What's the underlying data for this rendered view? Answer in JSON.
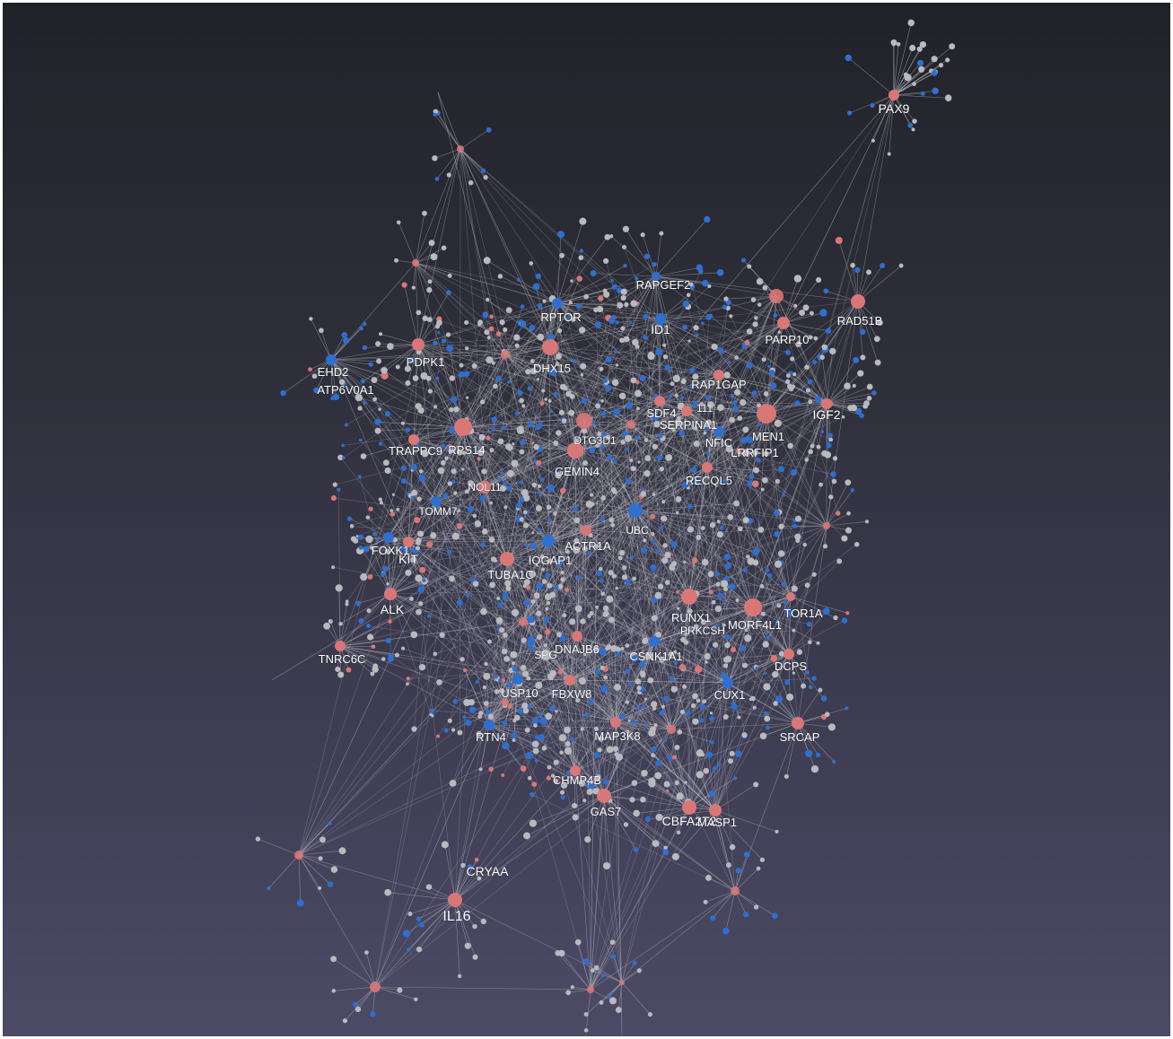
{
  "colors": {
    "hub": "#d97777",
    "blue": "#2f6fd0",
    "grey": "#b9b9be",
    "edge": "#c8c8d0"
  },
  "nodes": [
    {
      "id": "PAX9",
      "label": "PAX9"
    },
    {
      "id": "RAPGEF2",
      "label": "RAPGEF2"
    },
    {
      "id": "RPTOR",
      "label": "RPTOR"
    },
    {
      "id": "ID1",
      "label": "ID1"
    },
    {
      "id": "PARP10",
      "label": "PARP10"
    },
    {
      "id": "RAD51B",
      "label": "RAD51B"
    },
    {
      "id": "EHD2",
      "label": "EHD2"
    },
    {
      "id": "PDPK1",
      "label": "PDPK1"
    },
    {
      "id": "DHX15",
      "label": "DHX15"
    },
    {
      "id": "ATP6V0A1",
      "label": "ATP6V0A1"
    },
    {
      "id": "RAP1GAP",
      "label": "RAP1GAP"
    },
    {
      "id": "SDF4",
      "label": "SDF4"
    },
    {
      "id": "SERPINA1",
      "label": "SERPINA1"
    },
    {
      "id": "IGF2",
      "label": "IGF2"
    },
    {
      "id": "MEN1",
      "label": "MEN1"
    },
    {
      "id": "NFIC",
      "label": "NFIC"
    },
    {
      "id": "LRRFIP1",
      "label": "LRRFIP1"
    },
    {
      "id": "TRAPPC9",
      "label": "TRAPPC9"
    },
    {
      "id": "RPS14",
      "label": "RPS14"
    },
    {
      "id": "GEMIN4",
      "label": "GEMIN4"
    },
    {
      "id": "RECQL5",
      "label": "RECQL5"
    },
    {
      "id": "TOMM7",
      "label": "TOMM7"
    },
    {
      "id": "FOXK1",
      "label": "FOXK1"
    },
    {
      "id": "KIT",
      "label": "KIT"
    },
    {
      "id": "UBC",
      "label": "UBC"
    },
    {
      "id": "ACTR1A",
      "label": "ACTR1A"
    },
    {
      "id": "IQGAP1",
      "label": "IQGAP1"
    },
    {
      "id": "TUBA1C",
      "label": "TUBA1C"
    },
    {
      "id": "ALK",
      "label": "ALK"
    },
    {
      "id": "RUNX1",
      "label": "RUNX1"
    },
    {
      "id": "MORF4L1",
      "label": "MORF4L1"
    },
    {
      "id": "TOR1A",
      "label": "TOR1A"
    },
    {
      "id": "TNRC6C",
      "label": "TNRC6C"
    },
    {
      "id": "DNAJB6",
      "label": "DNAJB6"
    },
    {
      "id": "CSNK1A1",
      "label": "CSNK1A1"
    },
    {
      "id": "DCPS",
      "label": "DCPS"
    },
    {
      "id": "USP10",
      "label": "USP10"
    },
    {
      "id": "FBXW8",
      "label": "FBXW8"
    },
    {
      "id": "CUX1",
      "label": "CUX1"
    },
    {
      "id": "RTN4",
      "label": "RTN4"
    },
    {
      "id": "MAP3K8",
      "label": "MAP3K8"
    },
    {
      "id": "SRCAP",
      "label": "SRCAP"
    },
    {
      "id": "CHMP4B",
      "label": "CHMP4B"
    },
    {
      "id": "GAS7",
      "label": "GAS7"
    },
    {
      "id": "CBFA2T2",
      "label": "CBFA2T2"
    },
    {
      "id": "MASP1",
      "label": "MASP1"
    },
    {
      "id": "CRYAA",
      "label": "CRYAA"
    },
    {
      "id": "IL16",
      "label": "IL16"
    },
    {
      "id": "NOL11",
      "label": "NOL11"
    },
    {
      "id": "SPG",
      "label": "SPG"
    },
    {
      "id": "PRKCSH",
      "label": "PRKCSH"
    },
    {
      "id": "DTG3D1",
      "label": "DTG3D1"
    },
    {
      "id": "E111",
      "label": "111"
    }
  ]
}
